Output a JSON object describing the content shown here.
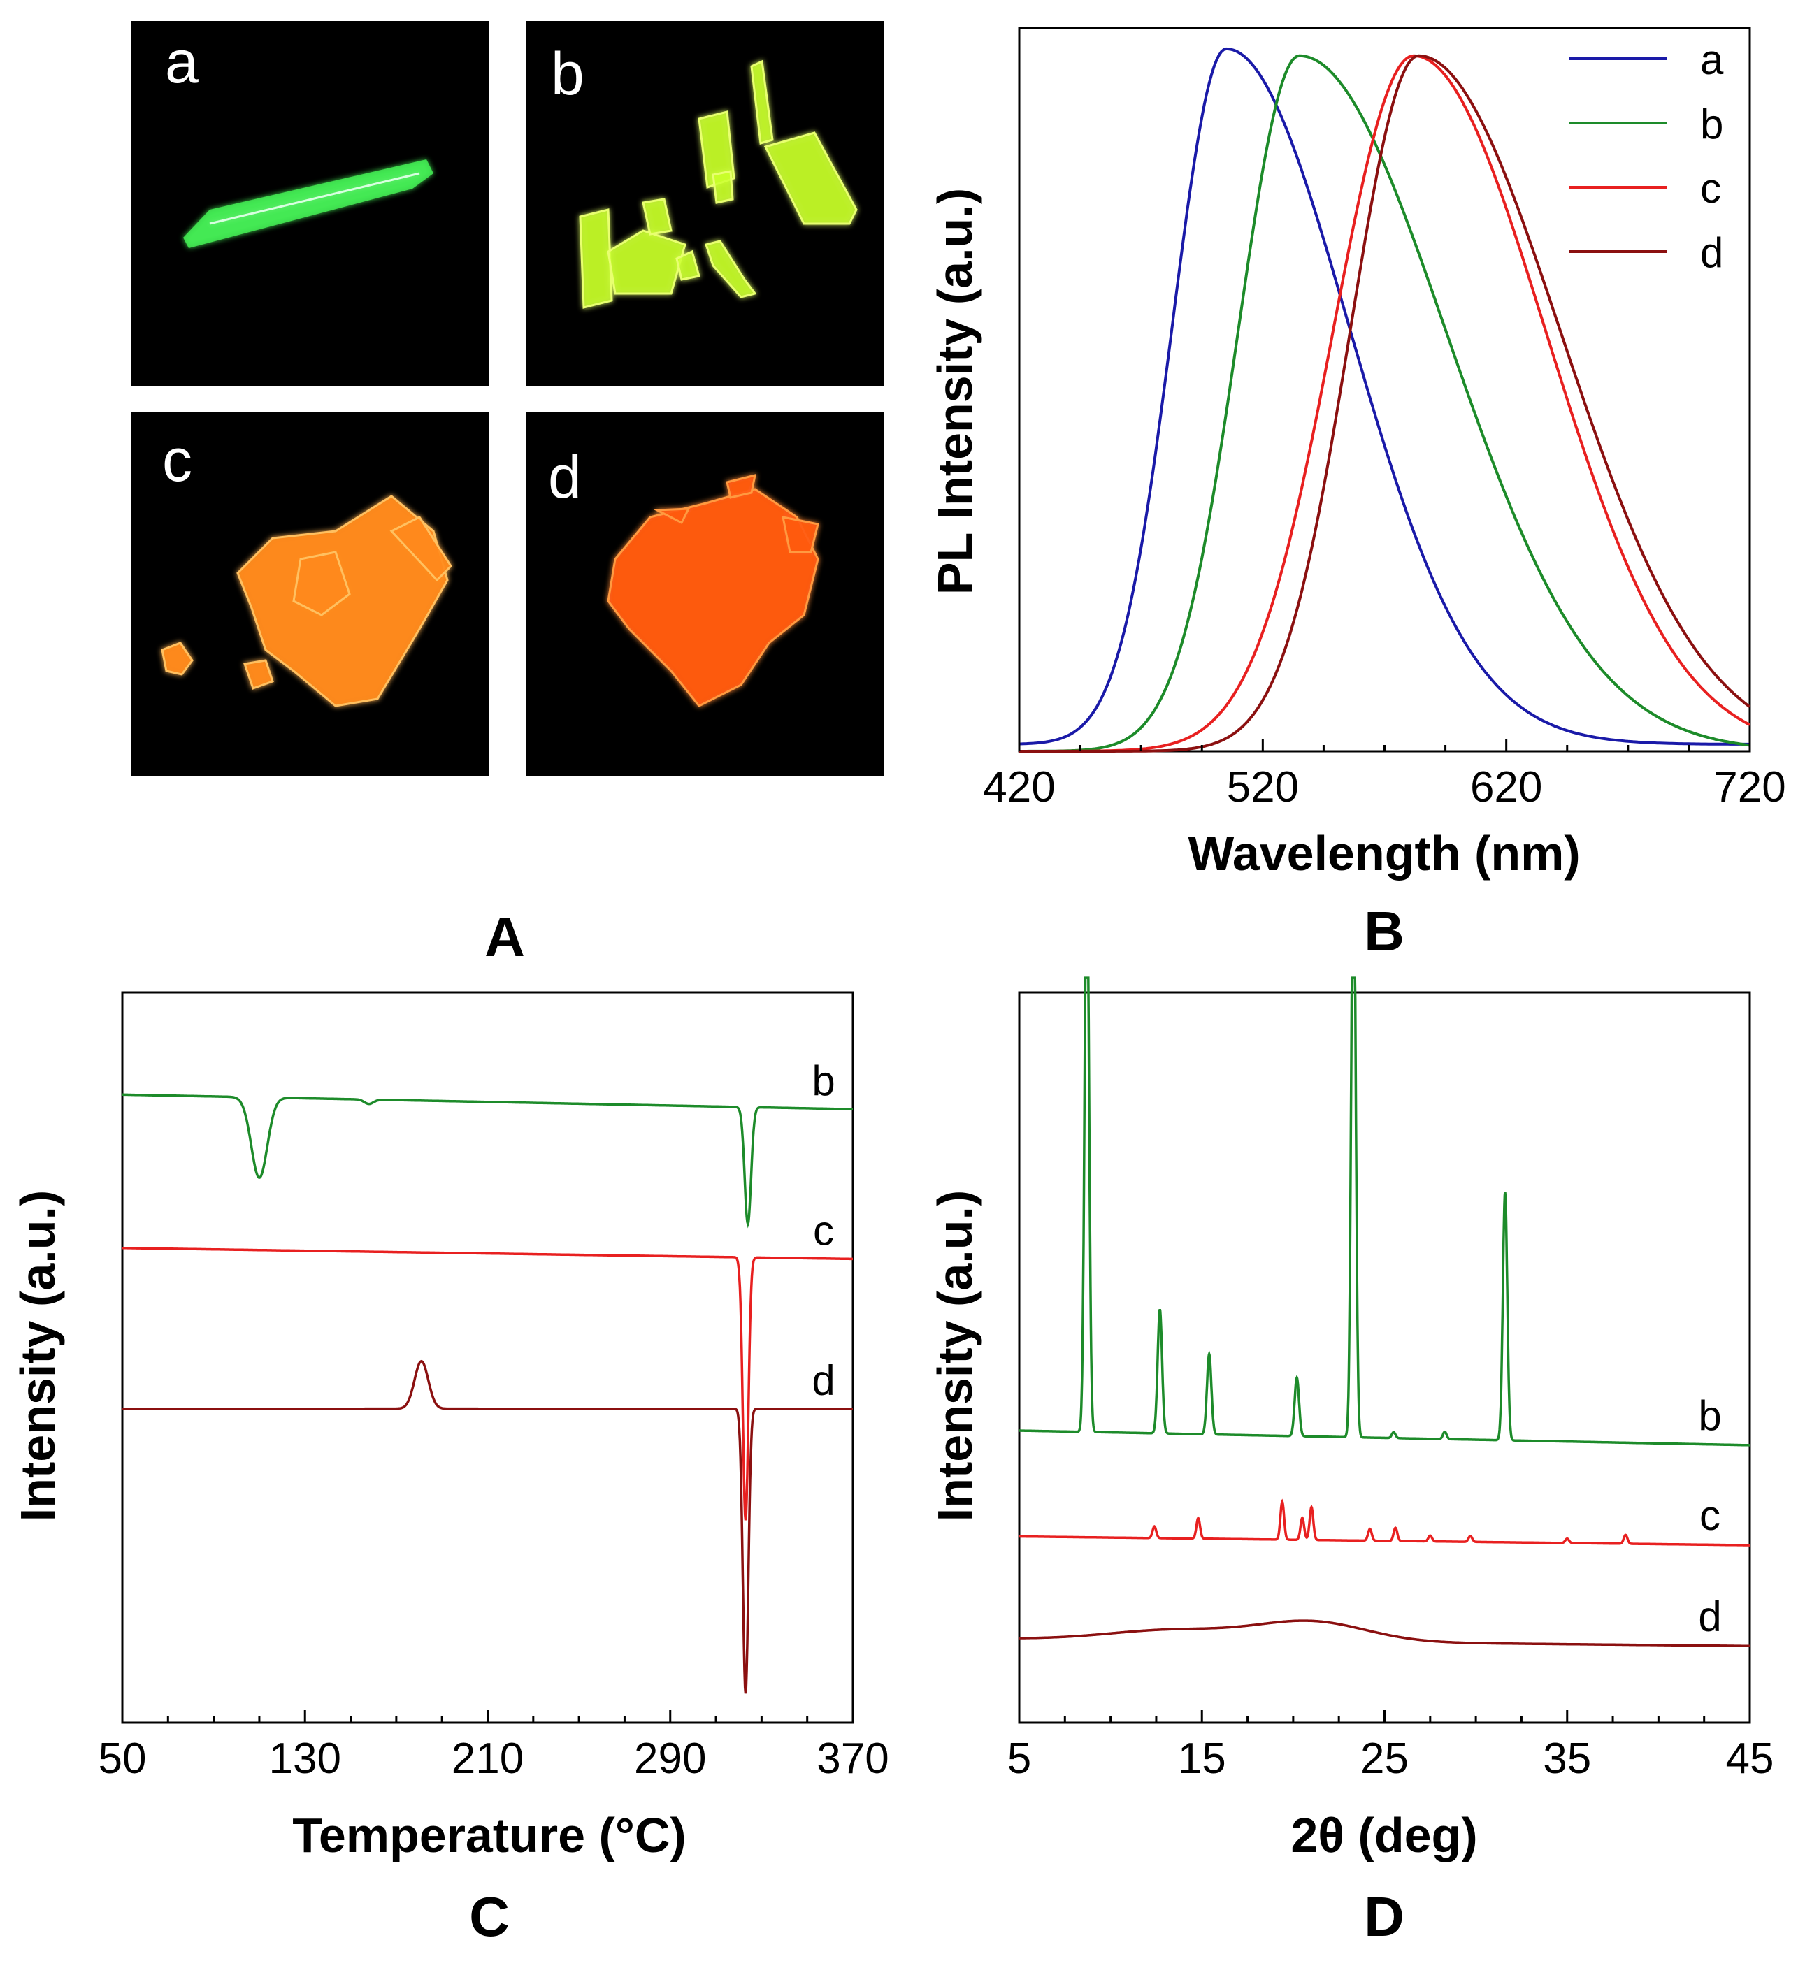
{
  "panels": {
    "A": {
      "label": "A",
      "photos": [
        {
          "letter": "a",
          "glow": "#44ee55"
        },
        {
          "letter": "b",
          "glow": "#c8ff2a"
        },
        {
          "letter": "c",
          "glow": "#ff8a1a"
        },
        {
          "letter": "d",
          "glow": "#ff5a10"
        }
      ]
    },
    "B": {
      "label": "B"
    },
    "C": {
      "label": "C"
    },
    "D": {
      "label": "D"
    }
  },
  "chart_data": [
    {
      "id": "B",
      "type": "line",
      "xlabel": "Wavelength (nm)",
      "ylabel": "PL Intensity (a.u.)",
      "xlim": [
        420,
        720
      ],
      "xticks": [
        420,
        520,
        620,
        720
      ],
      "ylim": [
        0,
        1.04
      ],
      "legend": "top-right",
      "series": [
        {
          "name": "a",
          "color": "#1a1aa8",
          "peak": 505,
          "sigma_left": 22,
          "sigma_right": 50,
          "baseline": 0.01
        },
        {
          "name": "b",
          "color": "#1d8b2a",
          "peak": 535,
          "sigma_left": 25,
          "sigma_right": 60,
          "baseline": 0.0
        },
        {
          "name": "c",
          "color": "#e82020",
          "peak": 582,
          "sigma_left": 33,
          "sigma_right": 54,
          "baseline": 0.0
        },
        {
          "name": "d",
          "color": "#8b1010",
          "peak": 584,
          "sigma_left": 28,
          "sigma_right": 58,
          "baseline": 0.0
        }
      ]
    },
    {
      "id": "C",
      "type": "line",
      "xlabel": "Temperature (°C)",
      "ylabel": "Intensity (a.u.)",
      "xlim": [
        50,
        370
      ],
      "xticks": [
        50,
        130,
        210,
        290,
        370
      ],
      "series": [
        {
          "name": "b",
          "color": "#1d8b2a",
          "offset": 0.86,
          "drift": -0.02,
          "features": [
            {
              "x": 110,
              "h": -0.11,
              "w": 3.5
            },
            {
              "x": 158,
              "h": -0.006,
              "w": 2
            },
            {
              "x": 324,
              "h": -0.16,
              "w": 1.4
            }
          ]
        },
        {
          "name": "c",
          "color": "#e82020",
          "offset": 0.65,
          "drift": -0.015,
          "features": [
            {
              "x": 323,
              "h": -0.36,
              "w": 1.2
            }
          ]
        },
        {
          "name": "d",
          "color": "#8b1010",
          "offset": 0.43,
          "drift": 0.0,
          "features": [
            {
              "x": 181,
              "h": 0.065,
              "w": 3
            },
            {
              "x": 323,
              "h": -0.39,
              "w": 1.2
            }
          ]
        }
      ]
    },
    {
      "id": "D",
      "type": "line",
      "xlabel": "2θ (deg)",
      "ylabel": "Intensity (a.u.)",
      "xlim": [
        5,
        45
      ],
      "xticks": [
        5,
        15,
        25,
        35,
        45
      ],
      "series": [
        {
          "name": "b",
          "color": "#1d8b2a",
          "offset": 0.4,
          "drift": -0.02,
          "features": [
            {
              "x": 8.7,
              "h": 0.8,
              "w": 0.12
            },
            {
              "x": 12.7,
              "h": 0.17,
              "w": 0.12
            },
            {
              "x": 15.4,
              "h": 0.11,
              "w": 0.12
            },
            {
              "x": 20.2,
              "h": 0.08,
              "w": 0.12
            },
            {
              "x": 23.3,
              "h": 0.85,
              "w": 0.12
            },
            {
              "x": 31.6,
              "h": 0.34,
              "w": 0.12
            },
            {
              "x": 28.3,
              "h": 0.01,
              "w": 0.1
            },
            {
              "x": 25.5,
              "h": 0.008,
              "w": 0.1
            }
          ]
        },
        {
          "name": "c",
          "color": "#e82020",
          "offset": 0.255,
          "drift": -0.012,
          "features": [
            {
              "x": 12.4,
              "h": 0.016,
              "w": 0.1
            },
            {
              "x": 14.8,
              "h": 0.028,
              "w": 0.1
            },
            {
              "x": 19.4,
              "h": 0.052,
              "w": 0.1
            },
            {
              "x": 20.5,
              "h": 0.03,
              "w": 0.1
            },
            {
              "x": 21.0,
              "h": 0.045,
              "w": 0.1
            },
            {
              "x": 24.2,
              "h": 0.016,
              "w": 0.1
            },
            {
              "x": 25.6,
              "h": 0.018,
              "w": 0.1
            },
            {
              "x": 27.5,
              "h": 0.008,
              "w": 0.1
            },
            {
              "x": 29.7,
              "h": 0.008,
              "w": 0.1
            },
            {
              "x": 35.0,
              "h": 0.006,
              "w": 0.1
            },
            {
              "x": 38.2,
              "h": 0.012,
              "w": 0.1
            }
          ]
        },
        {
          "name": "d",
          "color": "#8b1010",
          "offset": 0.115,
          "drift": -0.01,
          "features": [
            {
              "x": 13.5,
              "h": 0.014,
              "w": 3.5
            },
            {
              "x": 21.0,
              "h": 0.027,
              "w": 3.0
            }
          ]
        }
      ]
    }
  ]
}
